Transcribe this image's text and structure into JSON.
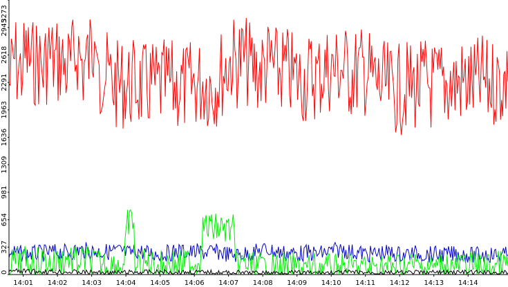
{
  "chart_data": {
    "type": "line",
    "title": "",
    "xlabel": "",
    "ylabel": "",
    "grid": false,
    "legend": "none",
    "ylim": [
      0,
      3273
    ],
    "xlim": [
      "14:00:35",
      "14:15:10"
    ],
    "y_ticks": [
      "0",
      "327",
      "654",
      "981",
      "1309",
      "1636",
      "1963",
      "2291",
      "2618",
      "2945",
      "3273"
    ],
    "x_ticks": [
      "14:01",
      "14:02",
      "14:03",
      "14:04",
      "14:05",
      "14:06",
      "14:07",
      "14:08",
      "14:09",
      "14:10",
      "14:11",
      "14:12",
      "14:13",
      "14:14"
    ],
    "series": [
      {
        "color": "#ff0000",
        "points": [
          [
            "14:00:35",
            2260
          ],
          [
            "14:00:45",
            2580
          ],
          [
            "14:00:55",
            2400
          ],
          [
            "14:01:05",
            2620
          ],
          [
            "14:01:15",
            2500
          ],
          [
            "14:01:25",
            2560
          ],
          [
            "14:01:35",
            2420
          ],
          [
            "14:01:45",
            2650
          ],
          [
            "14:01:55",
            2510
          ],
          [
            "14:02:05",
            2560
          ],
          [
            "14:02:15",
            2450
          ],
          [
            "14:02:25",
            2500
          ],
          [
            "14:02:35",
            2700
          ],
          [
            "14:02:45",
            2450
          ],
          [
            "14:02:55",
            2600
          ],
          [
            "14:03:05",
            2780
          ],
          [
            "14:03:15",
            2430
          ],
          [
            "14:03:25",
            2380
          ],
          [
            "14:03:35",
            2300
          ],
          [
            "14:03:45",
            2250
          ],
          [
            "14:03:55",
            2280
          ],
          [
            "14:04:05",
            2240
          ],
          [
            "14:04:15",
            2280
          ],
          [
            "14:04:25",
            2250
          ],
          [
            "14:04:35",
            2220
          ],
          [
            "14:04:45",
            2260
          ],
          [
            "14:04:55",
            2230
          ],
          [
            "14:05:05",
            2250
          ],
          [
            "14:05:15",
            2270
          ],
          [
            "14:05:25",
            2240
          ],
          [
            "14:05:35",
            2250
          ],
          [
            "14:05:45",
            2220
          ],
          [
            "14:05:55",
            2260
          ],
          [
            "14:06:05",
            2270
          ],
          [
            "14:06:15",
            2300
          ],
          [
            "14:06:25",
            2280
          ],
          [
            "14:06:35",
            2250
          ],
          [
            "14:06:45",
            2380
          ],
          [
            "14:06:55",
            2460
          ],
          [
            "14:07:05",
            2560
          ],
          [
            "14:07:15",
            2520
          ],
          [
            "14:07:25",
            2580
          ],
          [
            "14:07:35",
            2500
          ],
          [
            "14:07:45",
            2460
          ],
          [
            "14:07:55",
            2420
          ],
          [
            "14:08:05",
            2480
          ],
          [
            "14:08:15",
            2520
          ],
          [
            "14:08:25",
            2400
          ],
          [
            "14:08:35",
            2450
          ],
          [
            "14:08:45",
            2400
          ],
          [
            "14:08:55",
            2350
          ],
          [
            "14:09:05",
            2330
          ],
          [
            "14:09:15",
            2320
          ],
          [
            "14:09:25",
            2380
          ],
          [
            "14:09:35",
            2350
          ],
          [
            "14:09:45",
            2420
          ],
          [
            "14:09:55",
            2460
          ],
          [
            "14:10:05",
            2430
          ],
          [
            "14:10:15",
            2470
          ],
          [
            "14:10:25",
            2450
          ],
          [
            "14:10:35",
            2380
          ],
          [
            "14:10:45",
            2420
          ],
          [
            "14:10:55",
            2430
          ],
          [
            "14:11:05",
            2400
          ],
          [
            "14:11:15",
            2320
          ],
          [
            "14:11:25",
            2250
          ],
          [
            "14:11:35",
            2230
          ],
          [
            "14:11:45",
            2210
          ],
          [
            "14:11:55",
            2200
          ],
          [
            "14:12:05",
            2210
          ],
          [
            "14:12:15",
            2250
          ],
          [
            "14:12:25",
            2250
          ],
          [
            "14:12:35",
            2230
          ],
          [
            "14:12:45",
            2300
          ],
          [
            "14:12:55",
            2240
          ],
          [
            "14:13:05",
            2250
          ],
          [
            "14:13:15",
            2270
          ],
          [
            "14:13:25",
            2280
          ],
          [
            "14:13:35",
            2260
          ],
          [
            "14:13:45",
            2300
          ],
          [
            "14:13:55",
            2270
          ],
          [
            "14:14:05",
            2280
          ],
          [
            "14:14:15",
            2260
          ],
          [
            "14:14:25",
            2330
          ],
          [
            "14:14:35",
            2250
          ],
          [
            "14:14:45",
            2300
          ],
          [
            "14:14:55",
            2290
          ],
          [
            "14:15:10",
            2300
          ]
        ]
      },
      {
        "color": "#0000cc",
        "points": [
          [
            "14:00:35",
            260
          ],
          [
            "14:00:50",
            255
          ],
          [
            "14:01:05",
            245
          ],
          [
            "14:01:20",
            250
          ],
          [
            "14:01:35",
            255
          ],
          [
            "14:01:50",
            265
          ],
          [
            "14:02:05",
            270
          ],
          [
            "14:02:20",
            265
          ],
          [
            "14:02:35",
            290
          ],
          [
            "14:02:50",
            285
          ],
          [
            "14:03:05",
            275
          ],
          [
            "14:03:20",
            270
          ],
          [
            "14:03:35",
            275
          ],
          [
            "14:03:50",
            280
          ],
          [
            "14:04:05",
            250
          ],
          [
            "14:04:20",
            285
          ],
          [
            "14:04:35",
            260
          ],
          [
            "14:04:50",
            245
          ],
          [
            "14:05:05",
            250
          ],
          [
            "14:05:20",
            260
          ],
          [
            "14:05:35",
            280
          ],
          [
            "14:05:50",
            265
          ],
          [
            "14:06:05",
            270
          ],
          [
            "14:06:20",
            265
          ],
          [
            "14:06:35",
            270
          ],
          [
            "14:06:50",
            260
          ],
          [
            "14:07:05",
            230
          ],
          [
            "14:07:20",
            240
          ],
          [
            "14:07:35",
            250
          ],
          [
            "14:07:50",
            275
          ],
          [
            "14:08:05",
            300
          ],
          [
            "14:08:20",
            275
          ],
          [
            "14:08:35",
            260
          ],
          [
            "14:08:50",
            255
          ],
          [
            "14:09:05",
            250
          ],
          [
            "14:09:20",
            260
          ],
          [
            "14:09:35",
            245
          ],
          [
            "14:09:50",
            265
          ],
          [
            "14:10:05",
            285
          ],
          [
            "14:10:20",
            300
          ],
          [
            "14:10:35",
            270
          ],
          [
            "14:10:50",
            260
          ],
          [
            "14:11:05",
            240
          ],
          [
            "14:11:20",
            250
          ],
          [
            "14:11:35",
            260
          ],
          [
            "14:11:50",
            250
          ],
          [
            "14:12:05",
            240
          ],
          [
            "14:12:20",
            250
          ],
          [
            "14:12:35",
            250
          ],
          [
            "14:12:50",
            240
          ],
          [
            "14:13:05",
            240
          ],
          [
            "14:13:20",
            235
          ],
          [
            "14:13:35",
            245
          ],
          [
            "14:13:50",
            240
          ],
          [
            "14:14:05",
            230
          ],
          [
            "14:14:20",
            235
          ],
          [
            "14:14:35",
            240
          ],
          [
            "14:14:50",
            230
          ],
          [
            "14:15:10",
            235
          ]
        ]
      },
      {
        "color": "#00ee00",
        "points": [
          [
            "14:00:35",
            130
          ],
          [
            "14:00:50",
            170
          ],
          [
            "14:01:05",
            160
          ],
          [
            "14:01:20",
            140
          ],
          [
            "14:01:35",
            170
          ],
          [
            "14:01:50",
            130
          ],
          [
            "14:02:05",
            160
          ],
          [
            "14:02:20",
            200
          ],
          [
            "14:02:35",
            150
          ],
          [
            "14:02:50",
            180
          ],
          [
            "14:03:05",
            140
          ],
          [
            "14:03:20",
            130
          ],
          [
            "14:03:35",
            120
          ],
          [
            "14:03:50",
            110
          ],
          [
            "14:03:57",
            120
          ],
          [
            "14:04:00",
            400
          ],
          [
            "14:04:03",
            610
          ],
          [
            "14:04:08",
            630
          ],
          [
            "14:04:12",
            640
          ],
          [
            "14:04:14",
            620
          ],
          [
            "14:04:16",
            80
          ],
          [
            "14:04:30",
            120
          ],
          [
            "14:04:45",
            130
          ],
          [
            "14:05:00",
            110
          ],
          [
            "14:05:15",
            140
          ],
          [
            "14:05:30",
            120
          ],
          [
            "14:05:45",
            140
          ],
          [
            "14:06:00",
            140
          ],
          [
            "14:06:10",
            150
          ],
          [
            "14:06:12",
            420
          ],
          [
            "14:06:15",
            570
          ],
          [
            "14:06:30",
            560
          ],
          [
            "14:06:45",
            550
          ],
          [
            "14:07:00",
            540
          ],
          [
            "14:07:10",
            540
          ],
          [
            "14:07:12",
            80
          ],
          [
            "14:07:25",
            130
          ],
          [
            "14:07:40",
            110
          ],
          [
            "14:07:55",
            90
          ],
          [
            "14:08:10",
            70
          ],
          [
            "14:08:25",
            80
          ],
          [
            "14:08:40",
            75
          ],
          [
            "14:08:55",
            80
          ],
          [
            "14:09:10",
            70
          ],
          [
            "14:09:25",
            80
          ],
          [
            "14:09:40",
            90
          ],
          [
            "14:09:55",
            75
          ],
          [
            "14:10:10",
            70
          ],
          [
            "14:10:25",
            80
          ],
          [
            "14:10:40",
            85
          ],
          [
            "14:10:55",
            70
          ],
          [
            "14:11:10",
            75
          ],
          [
            "14:11:25",
            95
          ],
          [
            "14:11:40",
            90
          ],
          [
            "14:11:55",
            100
          ],
          [
            "14:12:10",
            95
          ],
          [
            "14:12:25",
            110
          ],
          [
            "14:12:40",
            90
          ],
          [
            "14:12:55",
            90
          ],
          [
            "14:13:10",
            100
          ],
          [
            "14:13:25",
            110
          ],
          [
            "14:13:40",
            90
          ],
          [
            "14:13:55",
            100
          ],
          [
            "14:14:10",
            100
          ],
          [
            "14:14:25",
            95
          ],
          [
            "14:14:40",
            100
          ],
          [
            "14:14:55",
            110
          ],
          [
            "14:15:10",
            100
          ]
        ]
      },
      {
        "color": "#000000",
        "points": [
          [
            "14:00:35",
            40
          ],
          [
            "14:01:35",
            35
          ],
          [
            "14:02:35",
            30
          ],
          [
            "14:03:35",
            20
          ],
          [
            "14:04:35",
            30
          ],
          [
            "14:05:35",
            28
          ],
          [
            "14:06:35",
            25
          ],
          [
            "14:07:35",
            18
          ],
          [
            "14:08:35",
            22
          ],
          [
            "14:09:35",
            20
          ],
          [
            "14:10:35",
            25
          ],
          [
            "14:11:35",
            20
          ],
          [
            "14:12:35",
            22
          ],
          [
            "14:13:35",
            25
          ],
          [
            "14:14:35",
            22
          ],
          [
            "14:15:10",
            20
          ]
        ]
      }
    ]
  }
}
